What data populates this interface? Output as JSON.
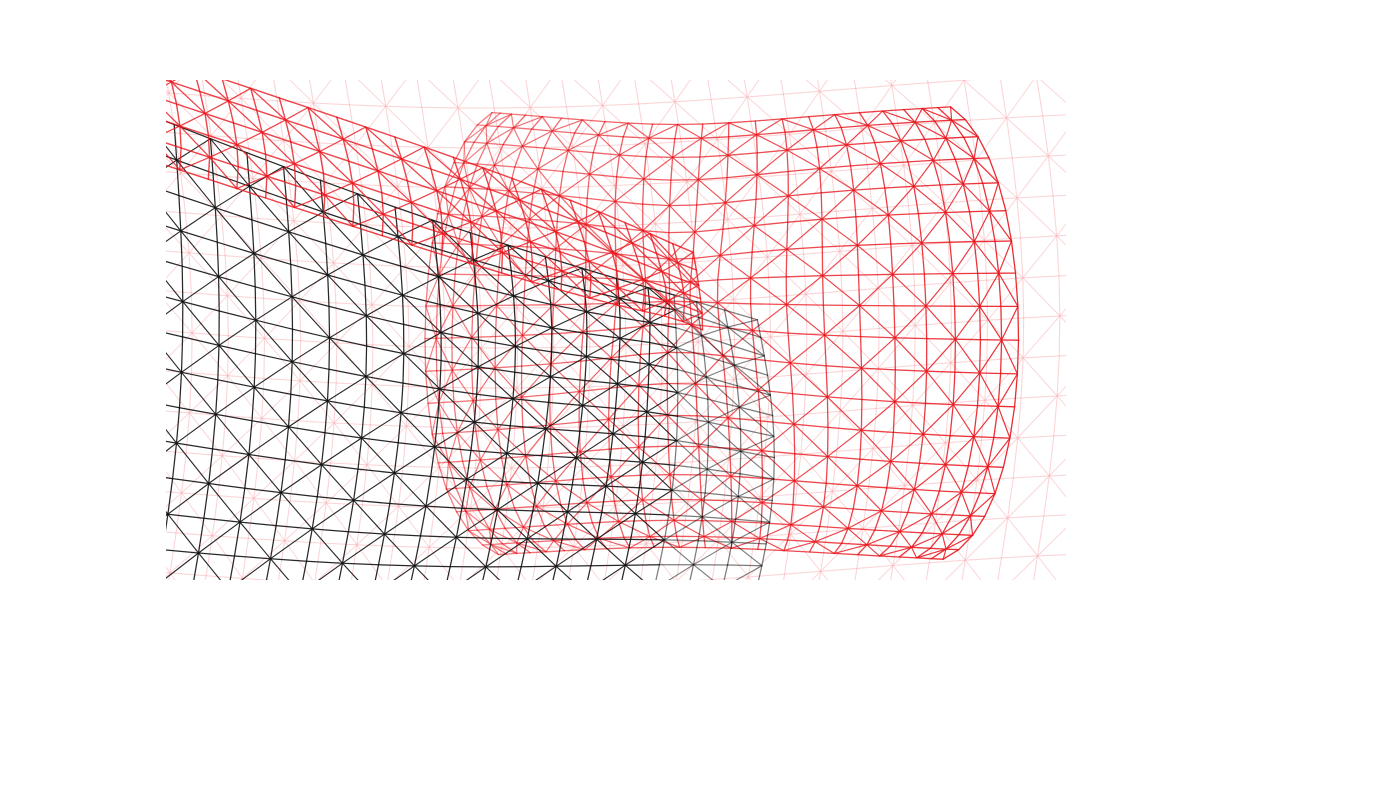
{
  "figure": {
    "kind": "wireframe-mesh",
    "description_colors": {
      "background": "#ffffff",
      "front_edges": "#111111",
      "back_edges": "#e8141b",
      "faint_edges": "#f7b3b6"
    },
    "surfaces": [
      {
        "name": "dark-lobe",
        "color_role": "front_edges"
      },
      {
        "name": "red-lobe",
        "color_role": "back_edges"
      }
    ]
  }
}
